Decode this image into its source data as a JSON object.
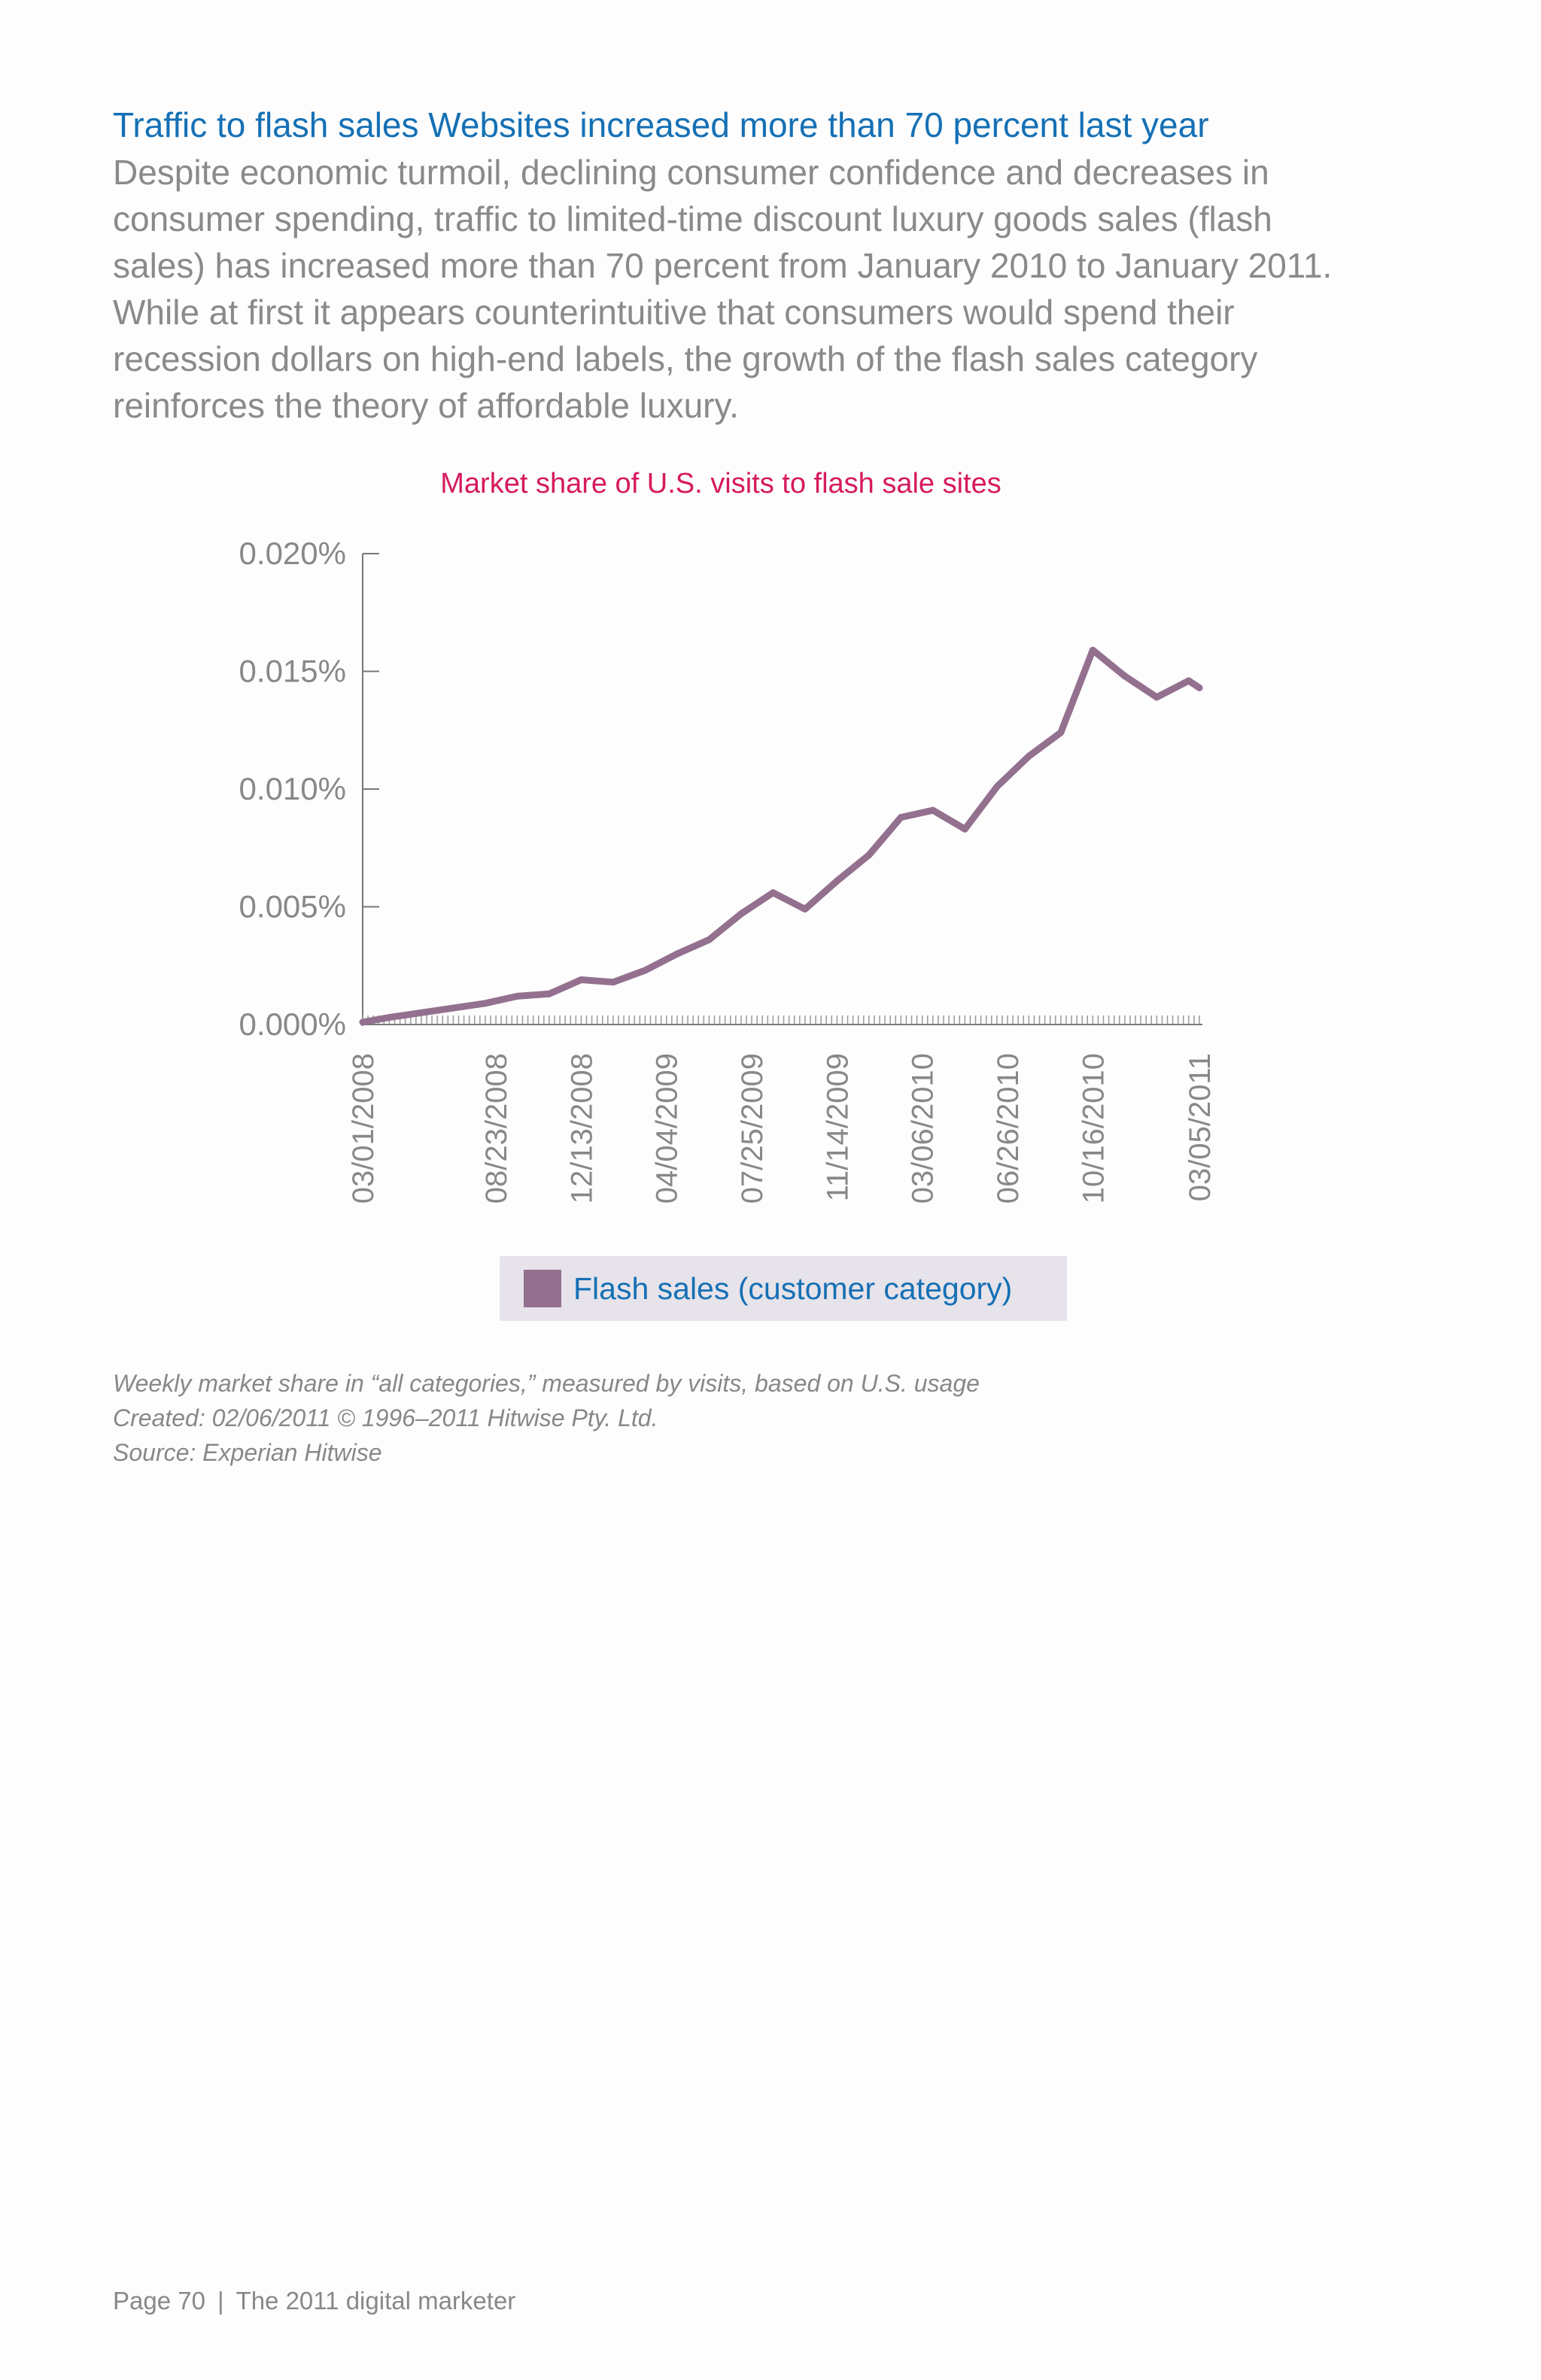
{
  "article": {
    "heading": "Traffic to flash sales Websites increased more than 70 percent last year",
    "body": "Despite economic turmoil, declining consumer confidence and decreases in consumer spending, traffic to limited-time discount luxury goods sales (flash sales) has increased more than 70 percent from January 2010 to January 2011. While at first it appears counterintuitive that consumers would spend their recession dollars on high-end labels, the growth of the flash sales category reinforces the theory of affordable luxury."
  },
  "chart_data": {
    "type": "line",
    "title": "Market share of U.S. visits to flash sale sites",
    "xlabel": "",
    "ylabel": "",
    "ylim": [
      0,
      0.02
    ],
    "y_ticks": [
      "0.000%",
      "0.005%",
      "0.010%",
      "0.015%",
      "0.020%"
    ],
    "x_tick_labels": [
      "03/01/2008",
      "08/23/2008",
      "12/13/2008",
      "04/04/2009",
      "07/25/2009",
      "11/14/2009",
      "03/06/2010",
      "06/26/2010",
      "10/16/2010",
      "03/05/2011"
    ],
    "grid": false,
    "legend": "bottom",
    "colors": {
      "title": "#d61a5e",
      "line": "#94708f",
      "axis": "#777777",
      "tick_text": "#888888"
    },
    "series": [
      {
        "name": "Flash sales (customer category)",
        "x": [
          "03/01/2008",
          "04/05/2008",
          "05/17/2008",
          "06/28/2008",
          "08/09/2008",
          "09/20/2008",
          "11/01/2008",
          "12/13/2008",
          "01/24/2009",
          "03/07/2009",
          "04/18/2009",
          "05/30/2009",
          "07/11/2009",
          "08/22/2009",
          "10/03/2009",
          "11/14/2009",
          "12/26/2009",
          "02/06/2010",
          "03/20/2010",
          "05/01/2010",
          "06/12/2010",
          "07/24/2010",
          "09/04/2010",
          "10/16/2010",
          "11/27/2010",
          "01/08/2011",
          "02/19/2011",
          "03/05/2011"
        ],
        "values": [
          0.0001,
          0.0003,
          0.0005,
          0.0007,
          0.0009,
          0.0012,
          0.0013,
          0.0019,
          0.0018,
          0.0023,
          0.003,
          0.0036,
          0.0047,
          0.0056,
          0.0049,
          0.0061,
          0.0072,
          0.0088,
          0.0091,
          0.0083,
          0.0101,
          0.0114,
          0.0124,
          0.0159,
          0.0148,
          0.0139,
          0.0146,
          0.0143
        ]
      }
    ]
  },
  "legend": {
    "label": "Flash sales (customer category)"
  },
  "notes": {
    "line1": "Weekly market share in “all categories,” measured by visits, based on U.S. usage",
    "line2": "Created: 02/06/2011 © 1996–2011 Hitwise Pty. Ltd.",
    "line3": "Source: Experian Hitwise"
  },
  "footer": {
    "page": "Page 70",
    "separator": "|",
    "publication": "The 2011 digital marketer"
  }
}
